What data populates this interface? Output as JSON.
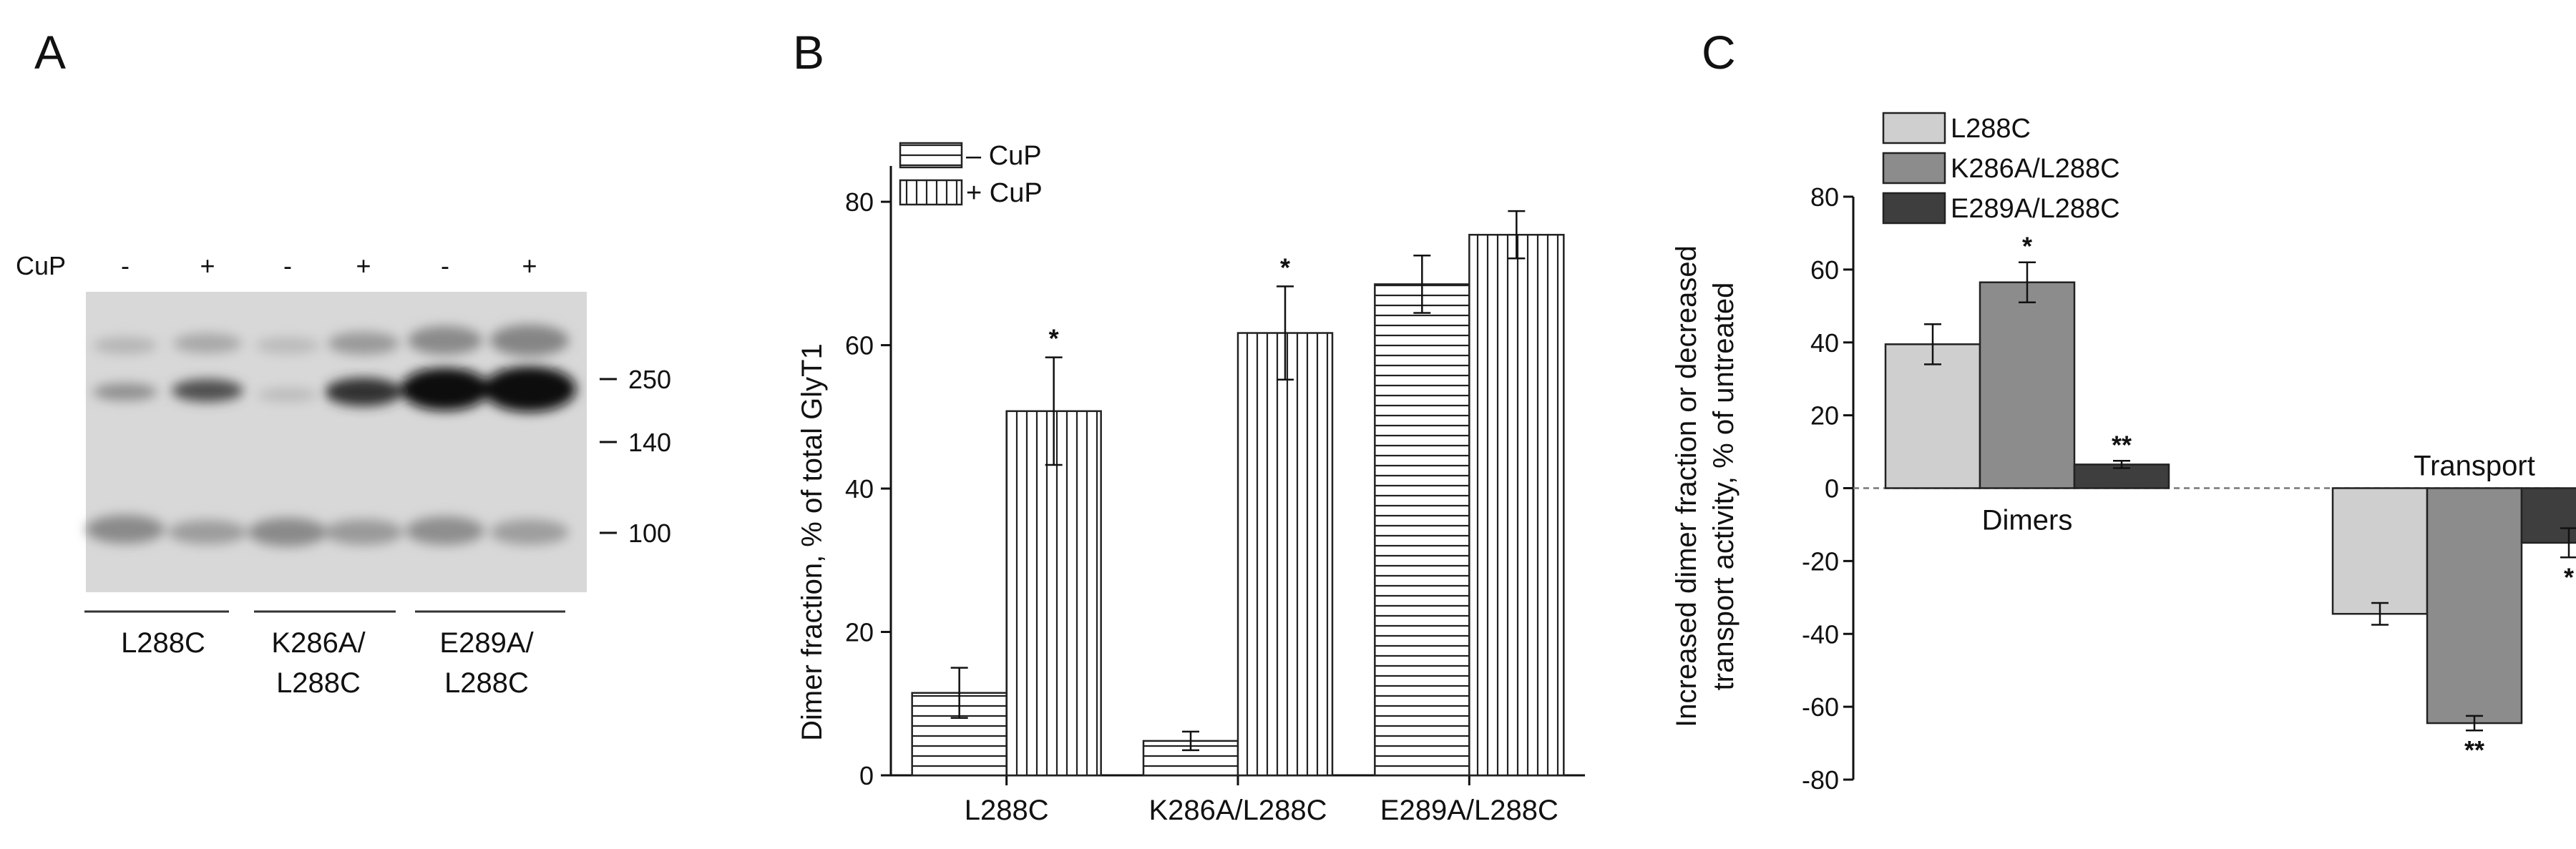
{
  "panels": {
    "a": "A",
    "b": "B",
    "c": "C"
  },
  "blot": {
    "cup_label": "CuP",
    "lane_signs": [
      "-",
      "+",
      "-",
      "+",
      "-",
      "+"
    ],
    "markers": [
      "250",
      "140",
      "100"
    ],
    "groups": [
      {
        "line1": "L288C",
        "line2": ""
      },
      {
        "line1": "K286A/",
        "line2": "L288C"
      },
      {
        "line1": "E289A/",
        "line2": "L288C"
      }
    ]
  },
  "chart_data": [
    {
      "type": "bar",
      "title": "",
      "xlabel": "",
      "ylabel": "Dimer fraction, % of total GlyT1",
      "ylim": [
        0,
        85
      ],
      "yticks": [
        "0",
        "20",
        "40",
        "60",
        "80"
      ],
      "categories": [
        "L288C",
        "K286A/L288C",
        "E289A/L288C"
      ],
      "series": [
        {
          "name": "– CuP",
          "values": [
            11.5,
            4.8,
            68.5
          ],
          "errors": [
            3.5,
            1.3,
            4.0
          ],
          "marks": [
            "",
            "",
            ""
          ]
        },
        {
          "name": "+ CuP",
          "values": [
            50.8,
            61.7,
            75.4
          ],
          "errors": [
            7.5,
            6.5,
            3.3
          ],
          "marks": [
            "*",
            "*",
            ""
          ]
        }
      ],
      "legend": "top-left"
    },
    {
      "type": "bar",
      "title": "",
      "xlabel": "",
      "ylabel": "Increased dimer fraction or decreased transport activity, % of untreated",
      "ylabel_line1": "Increased dimer fraction or decreased",
      "ylabel_line2": "transport activity, % of untreated",
      "ylim": [
        -80,
        80
      ],
      "yticks": [
        "80",
        "60",
        "40",
        "20",
        "0",
        "-20",
        "-40",
        "-60",
        "-80"
      ],
      "categories": [
        "Dimers",
        "Transport"
      ],
      "series": [
        {
          "name": "L288C",
          "color": "#cfcfcf",
          "values": [
            39.5,
            -34.5
          ],
          "errors": [
            5.5,
            3.0
          ],
          "marks": [
            "",
            ""
          ]
        },
        {
          "name": "K286A/L288C",
          "color": "#8c8c8c",
          "values": [
            56.5,
            -64.5
          ],
          "errors": [
            5.5,
            2.0
          ],
          "marks": [
            "*",
            "**"
          ]
        },
        {
          "name": "E289A/L288C",
          "color": "#3e3e3e",
          "values": [
            6.5,
            -15.0
          ],
          "errors": [
            1.0,
            4.0
          ],
          "marks": [
            "**",
            "*"
          ]
        }
      ],
      "legend": "top-left"
    }
  ]
}
